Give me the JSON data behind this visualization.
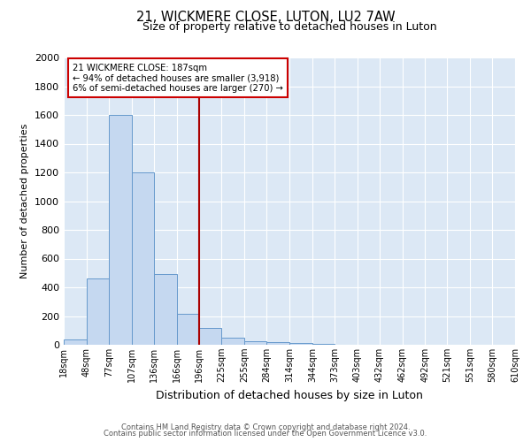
{
  "title": "21, WICKMERE CLOSE, LUTON, LU2 7AW",
  "subtitle": "Size of property relative to detached houses in Luton",
  "xlabel": "Distribution of detached houses by size in Luton",
  "ylabel": "Number of detached properties",
  "bar_color": "#c5d8f0",
  "bar_edgecolor": "#6699cc",
  "plot_bg_color": "#dce8f5",
  "fig_bg_color": "#ffffff",
  "annotation_box_color": "#ffffff",
  "annotation_box_edgecolor": "#cc0000",
  "vline_color": "#aa0000",
  "vline_x": 196,
  "annotation_line1": "21 WICKMERE CLOSE: 187sqm",
  "annotation_line2": "← 94% of detached houses are smaller (3,918)",
  "annotation_line3": "6% of semi-detached houses are larger (270) →",
  "footer1": "Contains HM Land Registry data © Crown copyright and database right 2024.",
  "footer2": "Contains public sector information licensed under the Open Government Licence v3.0.",
  "bins": [
    18,
    48,
    77,
    107,
    136,
    166,
    196,
    225,
    255,
    284,
    314,
    344,
    373,
    403,
    432,
    462,
    492,
    521,
    551,
    580,
    610
  ],
  "counts": [
    35,
    460,
    1600,
    1200,
    490,
    215,
    120,
    50,
    25,
    20,
    10,
    5,
    0,
    0,
    0,
    0,
    0,
    0,
    0,
    0
  ],
  "ylim": [
    0,
    2000
  ],
  "yticks": [
    0,
    200,
    400,
    600,
    800,
    1000,
    1200,
    1400,
    1600,
    1800,
    2000
  ]
}
